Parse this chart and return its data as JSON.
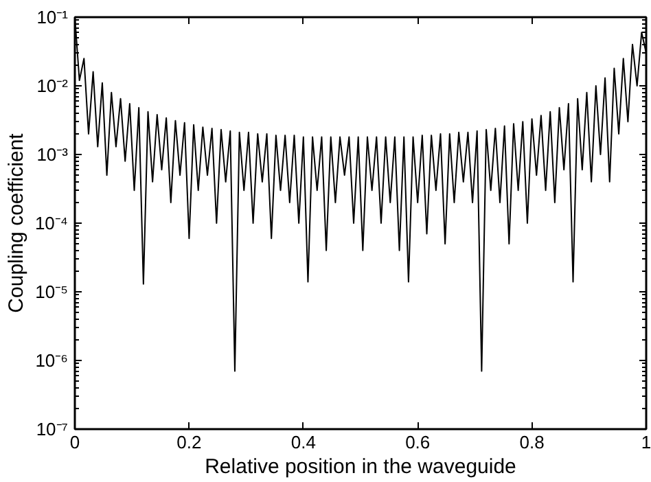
{
  "chart_data": {
    "type": "line",
    "xlabel": "Relative position in the waveguide",
    "ylabel": "Coupling coefficient",
    "log": "y",
    "xlim": [
      0,
      1
    ],
    "ylim": [
      1e-07,
      0.1
    ],
    "xticks": [
      0,
      0.2,
      0.4,
      0.6,
      0.8,
      1
    ],
    "yticks": [
      {
        "value": 1e-07,
        "label": "10⁻⁷"
      },
      {
        "value": 1e-06,
        "label": "10⁻⁶"
      },
      {
        "value": 1e-05,
        "label": "10⁻⁵"
      },
      {
        "value": 0.0001,
        "label": "10⁻⁴"
      },
      {
        "value": 0.001,
        "label": "10⁻³"
      },
      {
        "value": 0.01,
        "label": "10⁻²"
      },
      {
        "value": 0.1,
        "label": "10⁻¹"
      }
    ],
    "grid": false,
    "marker": "none",
    "line_style": "solid",
    "series": [
      {
        "color": "#000000",
        "x": [
          0,
          0.008,
          0.016,
          0.024,
          0.032,
          0.04,
          0.048,
          0.056,
          0.064,
          0.072,
          0.08,
          0.088,
          0.096,
          0.104,
          0.112,
          0.12,
          0.128,
          0.136,
          0.144,
          0.152,
          0.16,
          0.168,
          0.176,
          0.184,
          0.192,
          0.2,
          0.208,
          0.216,
          0.224,
          0.232,
          0.24,
          0.248,
          0.256,
          0.264,
          0.272,
          0.28,
          0.288,
          0.296,
          0.304,
          0.312,
          0.32,
          0.328,
          0.336,
          0.344,
          0.352,
          0.36,
          0.368,
          0.376,
          0.384,
          0.392,
          0.4,
          0.408,
          0.416,
          0.424,
          0.432,
          0.44,
          0.448,
          0.456,
          0.464,
          0.472,
          0.48,
          0.488,
          0.496,
          0.504,
          0.512,
          0.52,
          0.528,
          0.536,
          0.544,
          0.552,
          0.56,
          0.568,
          0.576,
          0.584,
          0.592,
          0.6,
          0.608,
          0.616,
          0.624,
          0.632,
          0.64,
          0.648,
          0.656,
          0.664,
          0.672,
          0.68,
          0.688,
          0.696,
          0.704,
          0.712,
          0.72,
          0.728,
          0.736,
          0.744,
          0.752,
          0.76,
          0.768,
          0.776,
          0.784,
          0.792,
          0.8,
          0.808,
          0.816,
          0.824,
          0.832,
          0.84,
          0.848,
          0.856,
          0.864,
          0.872,
          0.88,
          0.888,
          0.896,
          0.904,
          0.912,
          0.92,
          0.928,
          0.936,
          0.944,
          0.952,
          0.96,
          0.968,
          0.976,
          0.984,
          0.992,
          1.0
        ],
        "values": [
          0.1,
          0.012,
          0.025,
          0.002,
          0.016,
          0.0013,
          0.011,
          0.0005,
          0.008,
          0.0013,
          0.0065,
          0.0008,
          0.0055,
          0.0003,
          0.0048,
          1.3e-05,
          0.0042,
          0.0004,
          0.0038,
          0.0006,
          0.0034,
          0.0002,
          0.0031,
          0.0005,
          0.0029,
          6e-05,
          0.0027,
          0.0003,
          0.0025,
          0.0005,
          0.0024,
          0.0001,
          0.0023,
          0.0004,
          0.0022,
          7e-07,
          0.0021,
          0.0003,
          0.0021,
          0.0001,
          0.002,
          0.0004,
          0.002,
          6e-05,
          0.0019,
          0.0003,
          0.0019,
          0.0002,
          0.0019,
          0.0001,
          0.0018,
          1.4e-05,
          0.0018,
          0.0003,
          0.0018,
          4e-05,
          0.0018,
          0.0002,
          0.0018,
          0.0005,
          0.0018,
          0.0001,
          0.0018,
          4e-05,
          0.0018,
          0.0003,
          0.0018,
          0.0001,
          0.0018,
          0.0002,
          0.0018,
          4e-05,
          0.0018,
          1.4e-05,
          0.0018,
          0.0002,
          0.0019,
          7e-05,
          0.0019,
          0.0003,
          0.002,
          5e-05,
          0.002,
          0.0002,
          0.0021,
          0.0004,
          0.0021,
          0.0002,
          0.0022,
          7e-07,
          0.0023,
          0.0003,
          0.0024,
          0.0002,
          0.0026,
          5e-05,
          0.0028,
          0.0003,
          0.003,
          0.0001,
          0.0033,
          0.0005,
          0.0037,
          0.0003,
          0.0042,
          0.0002,
          0.0048,
          0.0006,
          0.0055,
          1.4e-05,
          0.0065,
          0.0006,
          0.008,
          0.0004,
          0.01,
          0.001,
          0.013,
          0.0004,
          0.018,
          0.002,
          0.025,
          0.003,
          0.04,
          0.01,
          0.06,
          0.03
        ]
      }
    ]
  }
}
